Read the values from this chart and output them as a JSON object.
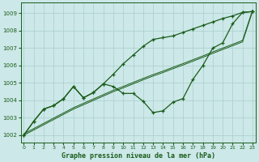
{
  "title": "Graphe pression niveau de la mer (hPa)",
  "bg_color": "#cce8e8",
  "grid_color": "#aacece",
  "line_color": "#1a5c1a",
  "text_color": "#1a5c1a",
  "x_ticks": [
    0,
    1,
    2,
    3,
    4,
    5,
    6,
    7,
    8,
    9,
    10,
    11,
    12,
    13,
    14,
    15,
    16,
    17,
    18,
    19,
    20,
    21,
    22,
    23
  ],
  "ylim": [
    1001.6,
    1009.6
  ],
  "xlim": [
    -0.3,
    23.3
  ],
  "yticks": [
    1002,
    1003,
    1004,
    1005,
    1006,
    1007,
    1008,
    1009
  ],
  "main_series": [
    1002.0,
    1002.8,
    1003.5,
    1003.7,
    1004.1,
    1004.8,
    1004.15,
    1004.45,
    1004.95,
    1004.8,
    1004.4,
    1004.4,
    1003.95,
    1003.3,
    1003.4,
    1003.9,
    1004.1,
    1005.2,
    1006.0,
    1007.0,
    1007.3,
    1008.4,
    1009.05,
    1009.1
  ],
  "upper_series": [
    1002.0,
    1002.8,
    1003.5,
    1003.7,
    1004.1,
    1004.8,
    1004.15,
    1004.45,
    1004.95,
    1005.5,
    1006.1,
    1006.6,
    1007.1,
    1007.5,
    1007.6,
    1007.7,
    1007.9,
    1008.1,
    1008.3,
    1008.5,
    1008.7,
    1008.85,
    1009.05,
    1009.1
  ],
  "trend_line": [
    1002.0,
    1002.3,
    1002.6,
    1002.9,
    1003.2,
    1003.5,
    1003.75,
    1004.0,
    1004.25,
    1004.5,
    1004.72,
    1004.95,
    1005.18,
    1005.4,
    1005.6,
    1005.82,
    1006.03,
    1006.25,
    1006.47,
    1006.7,
    1006.92,
    1007.14,
    1007.36,
    1009.1
  ],
  "trend_line2": [
    1002.0,
    1002.3,
    1002.6,
    1002.9,
    1003.2,
    1003.5,
    1003.75,
    1004.0,
    1004.25,
    1004.5,
    1004.72,
    1004.95,
    1005.18,
    1005.4,
    1005.6,
    1005.82,
    1006.03,
    1006.25,
    1006.47,
    1006.7,
    1006.92,
    1007.14,
    1007.36,
    1009.1
  ]
}
